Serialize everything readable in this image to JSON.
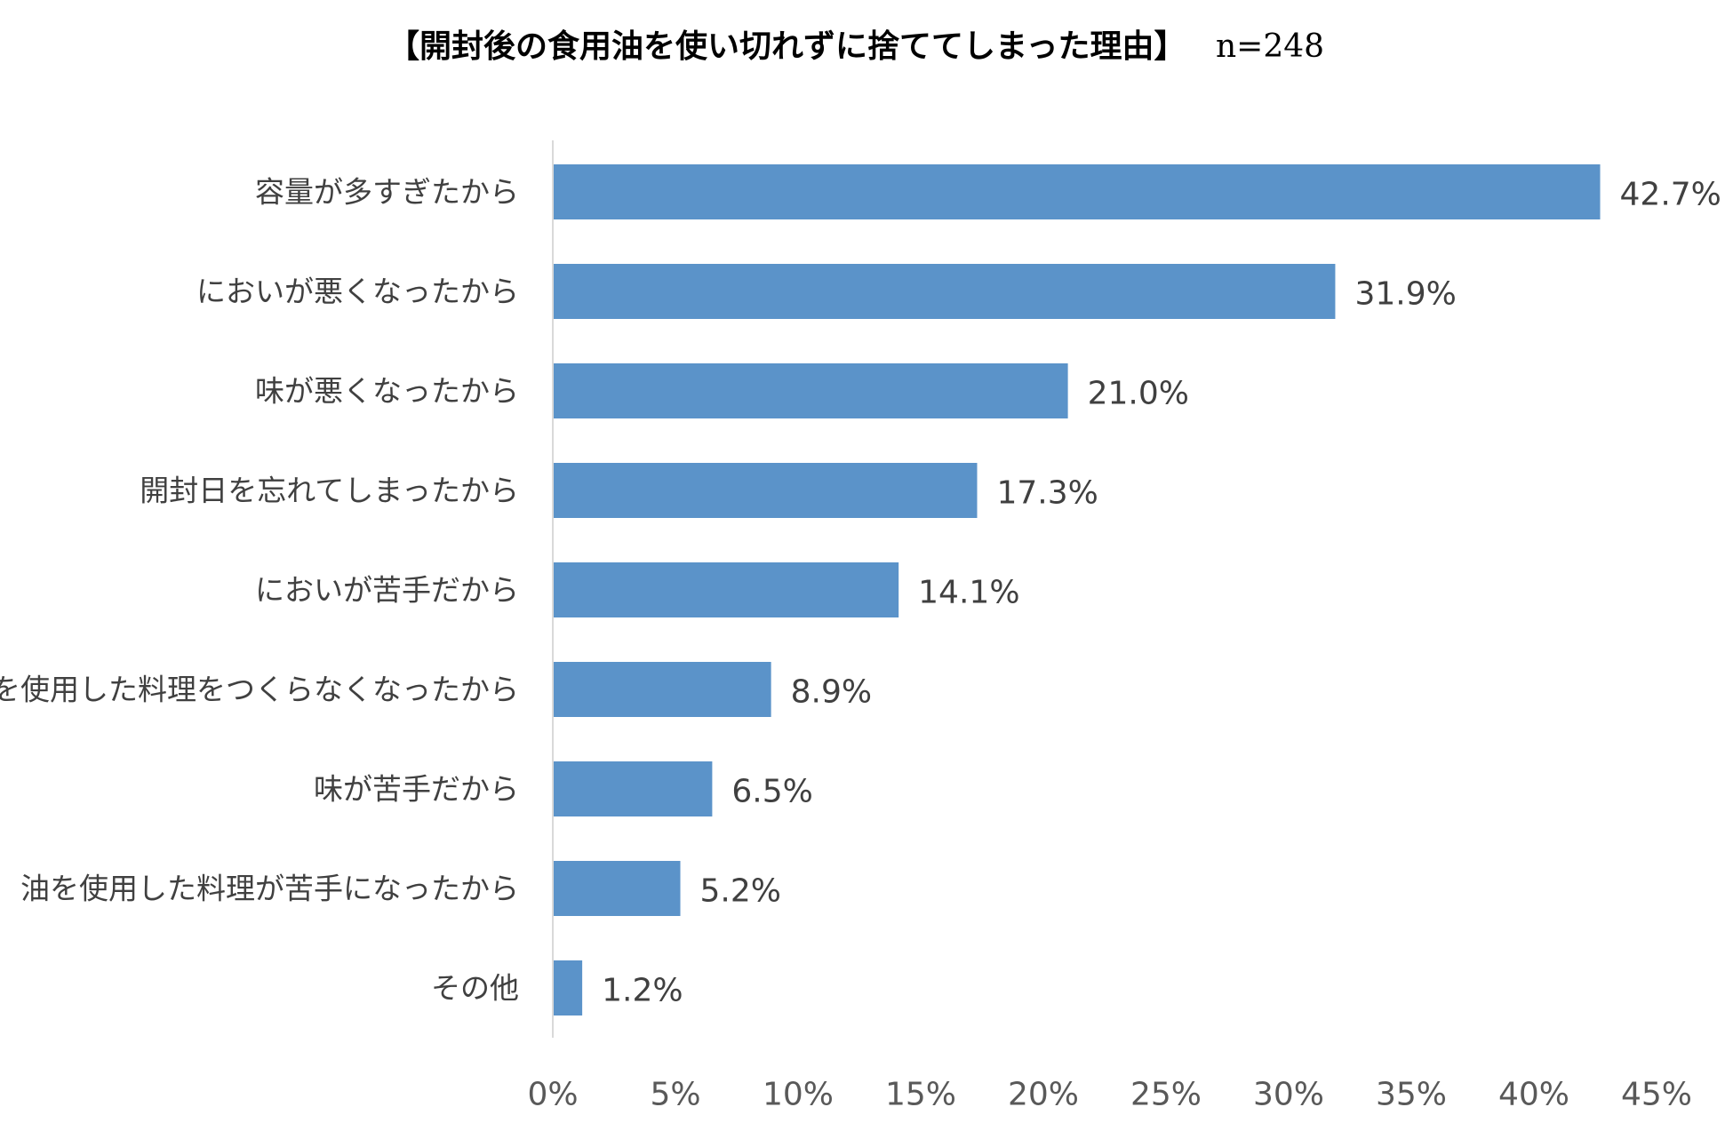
{
  "chart_data": {
    "type": "bar",
    "orientation": "horizontal",
    "title": "【開封後の食用油を使い切れずに捨ててしまった理由】",
    "sample_size": "n=248",
    "categories": [
      "容量が多すぎたから",
      "においが悪くなったから",
      "味が悪くなったから",
      "開封日を忘れてしまったから",
      "においが苦手だから",
      "油を使用した料理をつくらなくなったから",
      "味が苦手だから",
      "油を使用した料理が苦手になったから",
      "その他"
    ],
    "values": [
      42.7,
      31.9,
      21.0,
      17.3,
      14.1,
      8.9,
      6.5,
      5.2,
      1.2
    ],
    "value_labels": [
      "42.7%",
      "31.9%",
      "21.0%",
      "17.3%",
      "14.1%",
      "8.9%",
      "6.5%",
      "5.2%",
      "1.2%"
    ],
    "xlim": [
      0,
      45
    ],
    "x_ticks": [
      0,
      5,
      10,
      15,
      20,
      25,
      30,
      35,
      40,
      45
    ],
    "x_tick_labels": [
      "0%",
      "5%",
      "10%",
      "15%",
      "20%",
      "25%",
      "30%",
      "35%",
      "40%",
      "45%"
    ],
    "xlabel": "",
    "ylabel": "",
    "grid": false,
    "legend": "none",
    "bar_color": "#5B93C9",
    "axis_color": "#D9D9D9"
  }
}
